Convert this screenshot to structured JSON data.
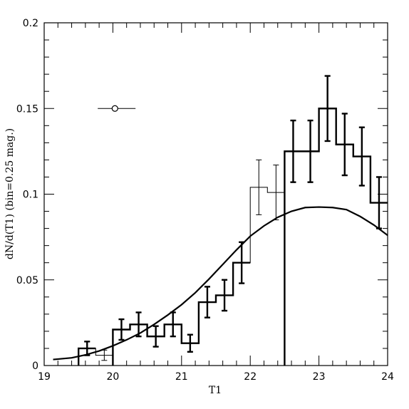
{
  "chart_data": {
    "type": "histogram",
    "xlabel": "T1",
    "ylabel": "dN/d(T1)  (bin=0.25  mag.)",
    "xlim": [
      19,
      24
    ],
    "ylim": [
      0,
      0.2
    ],
    "x_ticks": [
      19,
      20,
      21,
      22,
      23,
      24
    ],
    "x_tick_labels": [
      "19",
      "20",
      "21",
      "22",
      "23",
      "24"
    ],
    "y_ticks": [
      0,
      0.05,
      0.1,
      0.15,
      0.2
    ],
    "y_tick_labels": [
      "0",
      "0.05",
      "0.1",
      "0.15",
      "0.2"
    ],
    "grid": false,
    "series": [
      {
        "style": "thick-histogram",
        "bins": [
          {
            "x0": 19.5,
            "x1": 19.75,
            "y": 0.01,
            "err": 0.004
          },
          {
            "x0": 20.0,
            "x1": 20.25,
            "y": 0.021,
            "err": 0.006
          },
          {
            "x0": 20.25,
            "x1": 20.5,
            "y": 0.024,
            "err": 0.007
          },
          {
            "x0": 20.5,
            "x1": 20.75,
            "y": 0.017,
            "err": 0.006
          },
          {
            "x0": 20.75,
            "x1": 21.0,
            "y": 0.024,
            "err": 0.007
          },
          {
            "x0": 21.0,
            "x1": 21.25,
            "y": 0.013,
            "err": 0.005
          },
          {
            "x0": 21.25,
            "x1": 21.5,
            "y": 0.037,
            "err": 0.009
          },
          {
            "x0": 21.5,
            "x1": 21.75,
            "y": 0.041,
            "err": 0.009
          },
          {
            "x0": 21.75,
            "x1": 22.0,
            "y": 0.06,
            "err": 0.012
          },
          {
            "x0": 22.5,
            "x1": 22.75,
            "y": 0.125,
            "err": 0.018
          },
          {
            "x0": 22.75,
            "x1": 23.0,
            "y": 0.125,
            "err": 0.018
          },
          {
            "x0": 23.0,
            "x1": 23.25,
            "y": 0.15,
            "err": 0.019
          },
          {
            "x0": 23.25,
            "x1": 23.5,
            "y": 0.129,
            "err": 0.018
          },
          {
            "x0": 23.5,
            "x1": 23.75,
            "y": 0.122,
            "err": 0.017
          },
          {
            "x0": 23.75,
            "x1": 24.0,
            "y": 0.095,
            "err": 0.015
          }
        ]
      },
      {
        "style": "thin-histogram",
        "bins": [
          {
            "x0": 19.5,
            "x1": 19.75,
            "y": 0.01,
            "err": 0.004
          },
          {
            "x0": 19.75,
            "x1": 20.0,
            "y": 0.006,
            "err": 0.003
          },
          {
            "x0": 20.0,
            "x1": 20.25,
            "y": 0.021,
            "err": 0.006
          },
          {
            "x0": 20.25,
            "x1": 20.5,
            "y": 0.024,
            "err": 0.007
          },
          {
            "x0": 20.5,
            "x1": 20.75,
            "y": 0.017,
            "err": 0.006
          },
          {
            "x0": 20.75,
            "x1": 21.0,
            "y": 0.024,
            "err": 0.007
          },
          {
            "x0": 21.0,
            "x1": 21.25,
            "y": 0.013,
            "err": 0.005
          },
          {
            "x0": 21.25,
            "x1": 21.5,
            "y": 0.037,
            "err": 0.009
          },
          {
            "x0": 21.5,
            "x1": 21.75,
            "y": 0.041,
            "err": 0.009
          },
          {
            "x0": 21.75,
            "x1": 22.0,
            "y": 0.06,
            "err": 0.012
          },
          {
            "x0": 22.0,
            "x1": 22.25,
            "y": 0.104,
            "err": 0.016
          },
          {
            "x0": 22.25,
            "x1": 22.5,
            "y": 0.101,
            "err": 0.016
          },
          {
            "x0": 22.5,
            "x1": 22.75,
            "y": 0.125,
            "err": 0.018
          },
          {
            "x0": 22.75,
            "x1": 23.0,
            "y": 0.125,
            "err": 0.018
          },
          {
            "x0": 23.0,
            "x1": 23.25,
            "y": 0.15,
            "err": 0.019
          },
          {
            "x0": 23.25,
            "x1": 23.5,
            "y": 0.129,
            "err": 0.018
          },
          {
            "x0": 23.5,
            "x1": 23.75,
            "y": 0.122,
            "err": 0.017
          },
          {
            "x0": 23.75,
            "x1": 24.0,
            "y": 0.095,
            "err": 0.015
          }
        ]
      },
      {
        "style": "model-curve",
        "x": [
          19.13,
          19.4,
          19.6,
          19.8,
          20.0,
          20.2,
          20.4,
          20.6,
          20.8,
          21.0,
          21.2,
          21.4,
          21.6,
          21.8,
          22.0,
          22.2,
          22.4,
          22.6,
          22.8,
          23.0,
          23.2,
          23.4,
          23.6,
          23.8,
          24.0
        ],
        "y": [
          0.0035,
          0.0045,
          0.0062,
          0.0085,
          0.0115,
          0.015,
          0.019,
          0.024,
          0.0295,
          0.0355,
          0.0425,
          0.0505,
          0.059,
          0.0675,
          0.0755,
          0.0815,
          0.0865,
          0.09,
          0.0922,
          0.0925,
          0.0922,
          0.091,
          0.087,
          0.082,
          0.076
        ]
      }
    ],
    "annotation": {
      "marker": "open-circle",
      "x": 20.03,
      "y": 0.15,
      "xerr_low": 0.25,
      "xerr_high": 0.3
    }
  }
}
